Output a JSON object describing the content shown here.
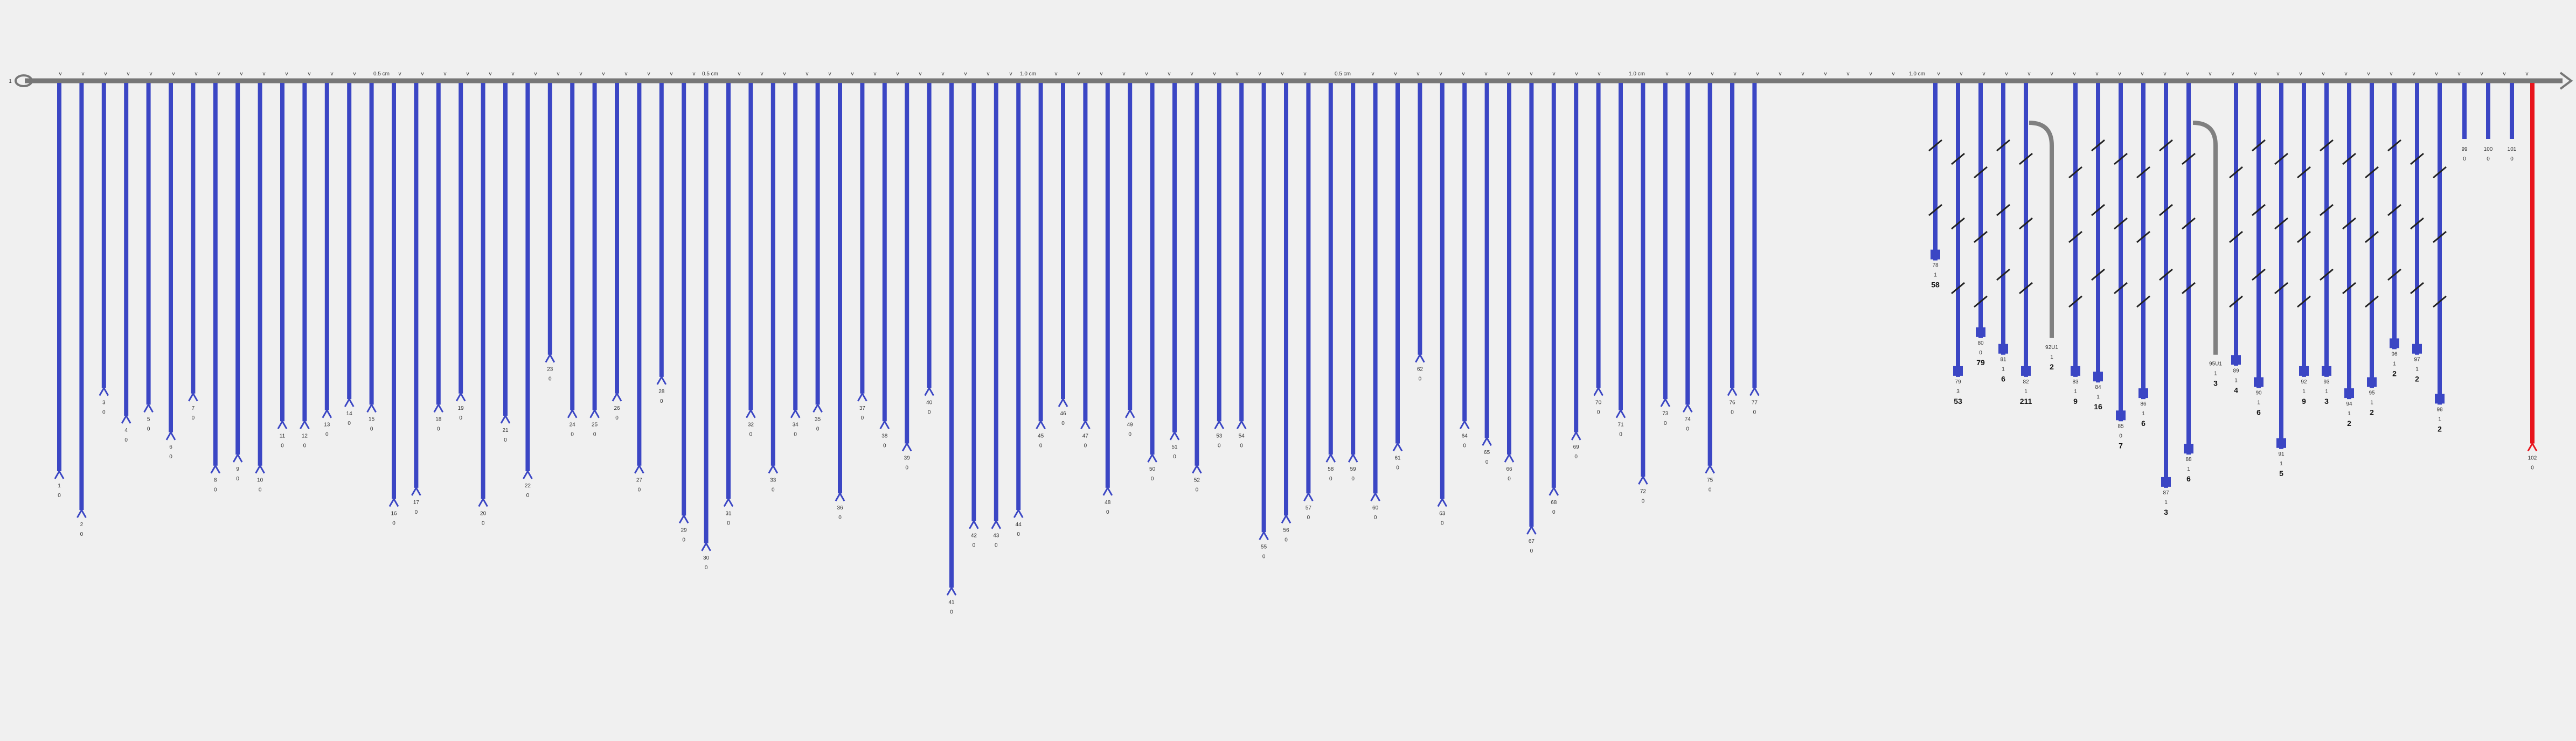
{
  "colors": {
    "background": "#f0f0f0",
    "axis": "#777777",
    "branch": "#3b46c4",
    "alt_branch": "#808080",
    "highlight": "#e8141c",
    "text": "#333333"
  },
  "axis": {
    "start_label": "1",
    "scale_labels": [
      "0.5 cm",
      "0.5 cm",
      "1.0 cm",
      "0.5 cm",
      "1.0 cm",
      "1.0 cm"
    ],
    "tick_mark": "v"
  },
  "branches": [
    {
      "label": "1",
      "value": "0",
      "depth": 0.7
    },
    {
      "label": "2",
      "value": "0",
      "depth": 0.77
    },
    {
      "label": "3",
      "value": "0",
      "depth": 0.55
    },
    {
      "label": "4",
      "value": "0",
      "depth": 0.6
    },
    {
      "label": "5",
      "value": "0",
      "depth": 0.58
    },
    {
      "label": "6",
      "value": "0",
      "depth": 0.63
    },
    {
      "label": "7",
      "value": "0",
      "depth": 0.56
    },
    {
      "label": "8",
      "value": "0",
      "depth": 0.69
    },
    {
      "label": "9",
      "value": "0",
      "depth": 0.67
    },
    {
      "label": "10",
      "value": "0",
      "depth": 0.69
    },
    {
      "label": "11",
      "value": "0",
      "depth": 0.61
    },
    {
      "label": "12",
      "value": "0",
      "depth": 0.61
    },
    {
      "label": "13",
      "value": "0",
      "depth": 0.59
    },
    {
      "label": "14",
      "value": "0",
      "depth": 0.57
    },
    {
      "label": "15",
      "value": "0",
      "depth": 0.58
    },
    {
      "label": "16",
      "value": "0",
      "depth": 0.75
    },
    {
      "label": "17",
      "value": "0",
      "depth": 0.73
    },
    {
      "label": "18",
      "value": "0",
      "depth": 0.58
    },
    {
      "label": "19",
      "value": "0",
      "depth": 0.56
    },
    {
      "label": "20",
      "value": "0",
      "depth": 0.75
    },
    {
      "label": "21",
      "value": "0",
      "depth": 0.6
    },
    {
      "label": "22",
      "value": "0",
      "depth": 0.7
    },
    {
      "label": "23",
      "value": "0",
      "depth": 0.49
    },
    {
      "label": "24",
      "value": "0",
      "depth": 0.59
    },
    {
      "label": "25",
      "value": "0",
      "depth": 0.59
    },
    {
      "label": "26",
      "value": "0",
      "depth": 0.56
    },
    {
      "label": "27",
      "value": "0",
      "depth": 0.69
    },
    {
      "label": "28",
      "value": "0",
      "depth": 0.53
    },
    {
      "label": "29",
      "value": "0",
      "depth": 0.78
    },
    {
      "label": "30",
      "value": "0",
      "depth": 0.83
    },
    {
      "label": "31",
      "value": "0",
      "depth": 0.75
    },
    {
      "label": "32",
      "value": "0",
      "depth": 0.59
    },
    {
      "label": "33",
      "value": "0",
      "depth": 0.69
    },
    {
      "label": "34",
      "value": "0",
      "depth": 0.59
    },
    {
      "label": "35",
      "value": "0",
      "depth": 0.58
    },
    {
      "label": "36",
      "value": "0",
      "depth": 0.74
    },
    {
      "label": "37",
      "value": "0",
      "depth": 0.56
    },
    {
      "label": "38",
      "value": "0",
      "depth": 0.61
    },
    {
      "label": "39",
      "value": "0",
      "depth": 0.65
    },
    {
      "label": "40",
      "value": "0",
      "depth": 0.55
    },
    {
      "label": "41",
      "value": "0",
      "depth": 0.91
    },
    {
      "label": "42",
      "value": "0",
      "depth": 0.79
    },
    {
      "label": "43",
      "value": "0",
      "depth": 0.79
    },
    {
      "label": "44",
      "value": "0",
      "depth": 0.77
    },
    {
      "label": "45",
      "value": "0",
      "depth": 0.61
    },
    {
      "label": "46",
      "value": "0",
      "depth": 0.57
    },
    {
      "label": "47",
      "value": "0",
      "depth": 0.61
    },
    {
      "label": "48",
      "value": "0",
      "depth": 0.73
    },
    {
      "label": "49",
      "value": "0",
      "depth": 0.59
    },
    {
      "label": "50",
      "value": "0",
      "depth": 0.67
    },
    {
      "label": "51",
      "value": "0",
      "depth": 0.63
    },
    {
      "label": "52",
      "value": "0",
      "depth": 0.69
    },
    {
      "label": "53",
      "value": "0",
      "depth": 0.61
    },
    {
      "label": "54",
      "value": "0",
      "depth": 0.61
    },
    {
      "label": "55",
      "value": "0",
      "depth": 0.81
    },
    {
      "label": "56",
      "value": "0",
      "depth": 0.78
    },
    {
      "label": "57",
      "value": "0",
      "depth": 0.74
    },
    {
      "label": "58",
      "value": "0",
      "depth": 0.67
    },
    {
      "label": "59",
      "value": "0",
      "depth": 0.67
    },
    {
      "label": "60",
      "value": "0",
      "depth": 0.74
    },
    {
      "label": "61",
      "value": "0",
      "depth": 0.65
    },
    {
      "label": "62",
      "value": "0",
      "depth": 0.49
    },
    {
      "label": "63",
      "value": "0",
      "depth": 0.75
    },
    {
      "label": "64",
      "value": "0",
      "depth": 0.61
    },
    {
      "label": "65",
      "value": "0",
      "depth": 0.64
    },
    {
      "label": "66",
      "value": "0",
      "depth": 0.67
    },
    {
      "label": "67",
      "value": "0",
      "depth": 0.8
    },
    {
      "label": "68",
      "value": "0",
      "depth": 0.73
    },
    {
      "label": "69",
      "value": "0",
      "depth": 0.63
    },
    {
      "label": "70",
      "value": "0",
      "depth": 0.55
    },
    {
      "label": "71",
      "value": "0",
      "depth": 0.59
    },
    {
      "label": "72",
      "value": "0",
      "depth": 0.71
    },
    {
      "label": "73",
      "value": "0",
      "depth": 0.57
    },
    {
      "label": "74",
      "value": "0",
      "depth": 0.58
    },
    {
      "label": "75",
      "value": "0",
      "depth": 0.69
    },
    {
      "label": "76",
      "value": "0",
      "depth": 0.55
    },
    {
      "label": "77",
      "value": "0",
      "depth": 0.55
    }
  ],
  "special_branches": [
    {
      "label": "78",
      "value": "1",
      "count": "58",
      "depth": 0.32
    },
    {
      "label": "79",
      "value": "3",
      "count": "53",
      "depth": 0.53
    },
    {
      "label": "80",
      "value": "0",
      "count": "79",
      "depth": 0.46
    },
    {
      "label": "81",
      "value": "1",
      "count": "6",
      "depth": 0.49
    },
    {
      "label": "82",
      "value": "1",
      "count": "211",
      "depth": 0.53
    },
    {
      "label": "83",
      "value": "1",
      "count": "9",
      "depth": 0.53
    },
    {
      "label": "84",
      "value": "1",
      "count": "16",
      "depth": 0.54
    },
    {
      "label": "85",
      "value": "0",
      "count": "7",
      "depth": 0.61
    },
    {
      "label": "86",
      "value": "1",
      "count": "6",
      "depth": 0.57
    },
    {
      "label": "87",
      "value": "1",
      "count": "3",
      "depth": 0.73
    },
    {
      "label": "88",
      "value": "1",
      "count": "6",
      "depth": 0.67
    },
    {
      "label": "89",
      "value": "1",
      "count": "4",
      "depth": 0.51
    },
    {
      "label": "90",
      "value": "1",
      "count": "6",
      "depth": 0.55
    },
    {
      "label": "91",
      "value": "1",
      "count": "5",
      "depth": 0.66
    },
    {
      "label": "92",
      "value": "1",
      "count": "9",
      "depth": 0.53
    },
    {
      "label": "93",
      "value": "1",
      "count": "3",
      "depth": 0.53
    },
    {
      "label": "94",
      "value": "1",
      "count": "2",
      "depth": 0.57
    },
    {
      "label": "95",
      "value": "1",
      "count": "2",
      "depth": 0.55
    },
    {
      "label": "96",
      "value": "1",
      "count": "2",
      "depth": 0.48
    },
    {
      "label": "97",
      "value": "1",
      "count": "2",
      "depth": 0.49
    },
    {
      "label": "98",
      "value": "1",
      "count": "2",
      "depth": 0.58
    }
  ],
  "grey_branches": [
    {
      "label": "92U1",
      "value": "1",
      "count": "2",
      "depth": 0.46
    },
    {
      "label": "95U1",
      "value": "1",
      "count": "3",
      "depth": 0.49
    }
  ],
  "short_branches": [
    {
      "label": "99",
      "value": "0"
    },
    {
      "label": "100",
      "value": "0"
    },
    {
      "label": "101",
      "value": "0"
    }
  ],
  "highlight_branch": {
    "label": "102",
    "value": "0",
    "depth": 0.65
  }
}
